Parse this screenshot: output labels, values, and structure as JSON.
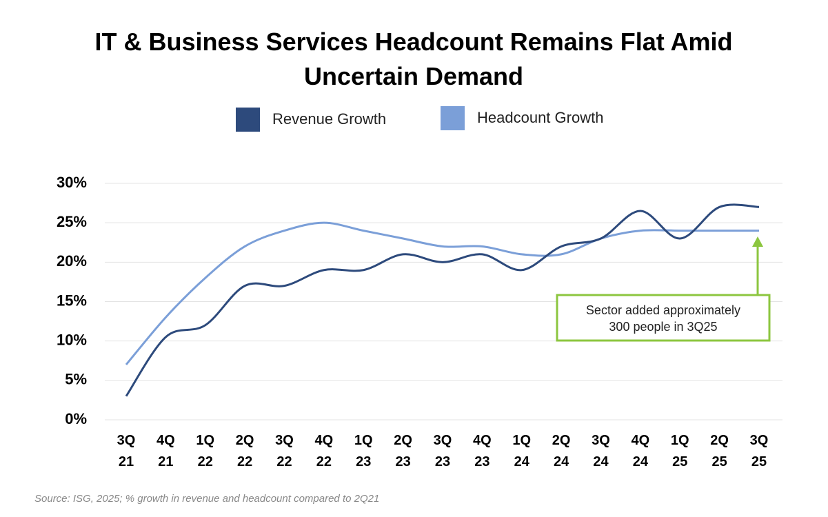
{
  "chart_data": {
    "type": "line",
    "title": "IT & Business Services Headcount Remains Flat Amid Uncertain Demand",
    "categories": [
      [
        "3Q",
        "21"
      ],
      [
        "4Q",
        "21"
      ],
      [
        "1Q",
        "22"
      ],
      [
        "2Q",
        "22"
      ],
      [
        "3Q",
        "22"
      ],
      [
        "4Q",
        "22"
      ],
      [
        "1Q",
        "23"
      ],
      [
        "2Q",
        "23"
      ],
      [
        "3Q",
        "23"
      ],
      [
        "4Q",
        "23"
      ],
      [
        "1Q",
        "24"
      ],
      [
        "2Q",
        "24"
      ],
      [
        "3Q",
        "24"
      ],
      [
        "4Q",
        "24"
      ],
      [
        "1Q",
        "25"
      ],
      [
        "2Q",
        "25"
      ],
      [
        "3Q",
        "25"
      ]
    ],
    "series": [
      {
        "name": "Revenue Growth",
        "color": "#2d4a7c",
        "values": [
          3,
          10.5,
          12,
          17,
          17,
          19,
          19,
          21,
          20,
          21,
          19,
          22,
          23,
          26.5,
          23,
          27,
          27
        ]
      },
      {
        "name": "Headcount Growth",
        "color": "#7b9fd8",
        "values": [
          7,
          13,
          18,
          22,
          24,
          25,
          24,
          23,
          22,
          22,
          21,
          21,
          23,
          24,
          24,
          24,
          24
        ]
      }
    ],
    "ylim": [
      0,
      30
    ],
    "yticks": [
      {
        "value": 0,
        "label": "0%"
      },
      {
        "value": 5,
        "label": "5%"
      },
      {
        "value": 10,
        "label": "10%"
      },
      {
        "value": 15,
        "label": "15%"
      },
      {
        "value": 20,
        "label": "20%"
      },
      {
        "value": 25,
        "label": "25%"
      },
      {
        "value": 30,
        "label": "30%"
      }
    ],
    "grid": true,
    "annotation": [
      "Sector added approximately",
      "300 people in 3Q25"
    ],
    "annotation_color": "#8cc63f",
    "source": "Source: ISG, 2025; % growth in revenue and headcount compared to 2Q21"
  }
}
